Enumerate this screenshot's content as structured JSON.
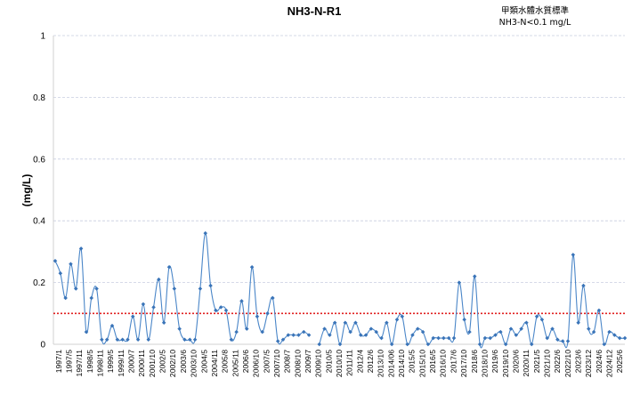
{
  "chart_data": {
    "type": "line",
    "title": "NH3-N-R1",
    "standard_title": "甲類水體水質標準",
    "standard_text": "NH3-N<0.1 mg/L",
    "ylabel": "(mg/L)",
    "xlabel": "",
    "ylim": [
      0,
      1
    ],
    "yticks": [
      "0",
      "0.2",
      "0.4",
      "0.6",
      "0.8",
      "1"
    ],
    "grid": true,
    "standard_value": 0.1,
    "colors": {
      "series": "#4a86c8",
      "marker": "#3a74b8",
      "standard": "#e02020",
      "grid": "#c8cde0",
      "axis": "#d0d0d0"
    },
    "tick_labels": [
      "1997/1",
      "1997/5",
      "1997/11",
      "1998/5",
      "1998/11",
      "1999/5",
      "1999/11",
      "2000/7",
      "2000/11",
      "2001/10",
      "2002/5",
      "2002/10",
      "2003/6",
      "2003/10",
      "2004/5",
      "2004/11",
      "2005/8",
      "2005/11",
      "2006/6",
      "2006/10",
      "2007/5",
      "2007/10",
      "2008/7",
      "2008/10",
      "2009/7",
      "2009/10",
      "2010/5",
      "2010/10",
      "2011/11",
      "2012/4",
      "2012/6",
      "2013/10",
      "2014/06",
      "2014/10",
      "2015/5",
      "2015/10",
      "2016/5",
      "2016/10",
      "2017/6",
      "2017/10",
      "2018/6",
      "2018/10",
      "2019/6",
      "2019/10",
      "2020/6",
      "2020/11",
      "2021/5",
      "2021/10",
      "2022/6",
      "2022/10",
      "2023/6",
      "2023/12",
      "2024/6",
      "2024/12",
      "2025/6"
    ],
    "series": [
      {
        "segments": [
          [
            0.27,
            0.23,
            0.15,
            0.26,
            0.18,
            0.31,
            0.04,
            0.15,
            0.18,
            0.015,
            0.015,
            0.06,
            0.015,
            0.015,
            0.015,
            0.09,
            0.015,
            0.13,
            0.015,
            0.12,
            0.21,
            0.07,
            0.25,
            0.18,
            0.05,
            0.015,
            0.015,
            0.015,
            0.18,
            0.36,
            0.19,
            0.11,
            0.12,
            0.11,
            0.015,
            0.04,
            0.14,
            0.05,
            0.25,
            0.09,
            0.04,
            0.1,
            0.15,
            0.01,
            0.015,
            0.03,
            0.03,
            0.03,
            0.04,
            0.03
          ],
          [
            0.0,
            0.05,
            0.03,
            0.07,
            0.0,
            0.07,
            0.04,
            0.07,
            0.03,
            0.03,
            0.05,
            0.04,
            0.02,
            0.07,
            0.0,
            0.08,
            0.09,
            0.0,
            0.03,
            0.05,
            0.04,
            0.0,
            0.02,
            0.02,
            0.02,
            0.02,
            0.02,
            0.2,
            0.08,
            0.04,
            0.22,
            0.0,
            0.02,
            0.02,
            0.03,
            0.04,
            0.0,
            0.05,
            0.03,
            0.05,
            0.07,
            0.0,
            0.09,
            0.08,
            0.02,
            0.05,
            0.015,
            0.01,
            0.01,
            0.29,
            0.07,
            0.19,
            0.05,
            0.04,
            0.11,
            0.0,
            0.04,
            0.03,
            0.02,
            0.02
          ]
        ]
      }
    ]
  }
}
